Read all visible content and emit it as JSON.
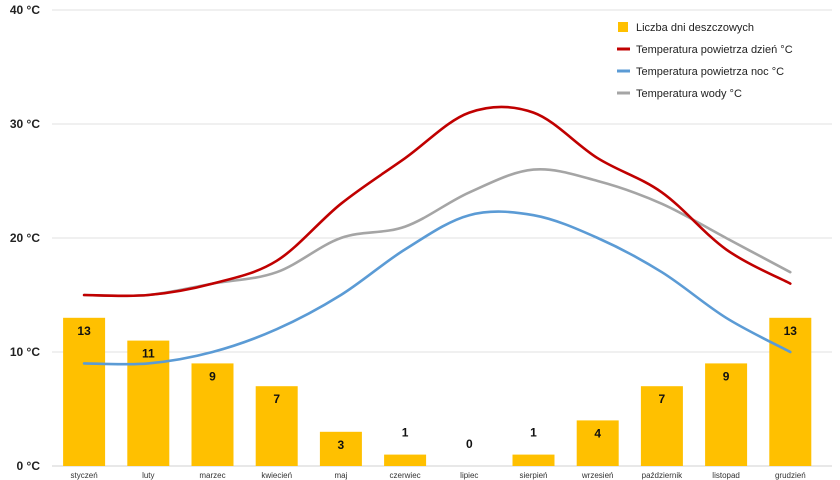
{
  "chart_data": {
    "type": "bar",
    "categories": [
      "styczeń",
      "luty",
      "marzec",
      "kwiecień",
      "maj",
      "czerwiec",
      "lipiec",
      "sierpień",
      "wrzesień",
      "październik",
      "listopad",
      "grudzień"
    ],
    "ylim": [
      0,
      40
    ],
    "yticks": [
      {
        "value": 0,
        "label": "0 °C"
      },
      {
        "value": 10,
        "label": "10 °C"
      },
      {
        "value": 20,
        "label": "20 °C"
      },
      {
        "value": 30,
        "label": "30 °C"
      },
      {
        "value": 40,
        "label": "40 °C"
      }
    ],
    "grid": true,
    "legend_position": "top-right",
    "bars": {
      "name": "Liczba dni deszczowych",
      "color": "#ffc000",
      "values": [
        13,
        11,
        9,
        7,
        3,
        1,
        0,
        1,
        4,
        7,
        9,
        13
      ]
    },
    "lines": [
      {
        "name": "Temperatura powietrza dzień °C",
        "color": "#c00000",
        "values": [
          15,
          15,
          16,
          18,
          23,
          27,
          31,
          31,
          27,
          24,
          19,
          16
        ]
      },
      {
        "name": "Temperatura powietrza noc °C",
        "color": "#5b9bd5",
        "values": [
          9,
          9,
          10,
          12,
          15,
          19,
          22,
          22,
          20,
          17,
          13,
          10
        ]
      },
      {
        "name": "Temperatura wody °C",
        "color": "#a5a5a5",
        "values": [
          15,
          15,
          16,
          17,
          20,
          21,
          24,
          26,
          25,
          23,
          20,
          17
        ]
      }
    ]
  }
}
